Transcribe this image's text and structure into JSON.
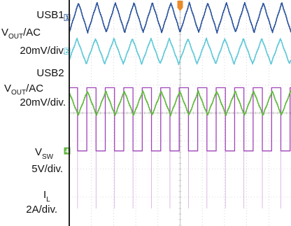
{
  "chart_data": {
    "type": "line",
    "title": "",
    "grid": true,
    "labels": [
      {
        "id": "usb1",
        "name": "USB1",
        "quantity": "V",
        "sub": "OUT",
        "suffix": "/AC",
        "scale": "20mV/div."
      },
      {
        "id": "usb2",
        "name": "USB2",
        "quantity": "V",
        "sub": "OUT",
        "suffix": "/AC",
        "scale": "20mV/div."
      },
      {
        "id": "vsw",
        "name": "",
        "quantity": "V",
        "sub": "SW",
        "suffix": "",
        "scale": "5V/div."
      },
      {
        "id": "il",
        "name": "",
        "quantity": "I",
        "sub": "L",
        "suffix": "",
        "scale": "2A/div."
      }
    ],
    "series": [
      {
        "id": "usb1",
        "shape": "triangle",
        "color": "#27509b",
        "marker": "1",
        "cycles": 12,
        "phase": 0.0,
        "center_div": 0.6,
        "ptp_div": 1.05,
        "ripple_mV_pp": 21
      },
      {
        "id": "usb2",
        "shape": "triangle",
        "color": "#5ec8d8",
        "marker": "2",
        "cycles": 12,
        "phase": 0.08,
        "center_div": 1.8,
        "ptp_div": 0.9,
        "ripple_mV_pp": 18
      },
      {
        "id": "vsw",
        "shape": "pulse",
        "color": "#a044b8",
        "marker": "3",
        "cycles": 12,
        "phase": 0.05,
        "low_div": 5.35,
        "high_div": 3.1,
        "duty": 0.5,
        "spike_div": 7.4
      },
      {
        "id": "il",
        "shape": "triangle",
        "color": "#5db838",
        "marker": "4",
        "cycles": 12,
        "phase": 0.52,
        "center_div": 3.65,
        "ptp_div": 0.85,
        "ripple_A_pp": 1.7
      }
    ],
    "axes": {
      "x_divisions": 10,
      "y_divisions": 8
    },
    "colors": {
      "grid": "#bbbbbb",
      "frame": "#222222",
      "background": "#ffffff",
      "trigger": "#e98b2a"
    }
  }
}
